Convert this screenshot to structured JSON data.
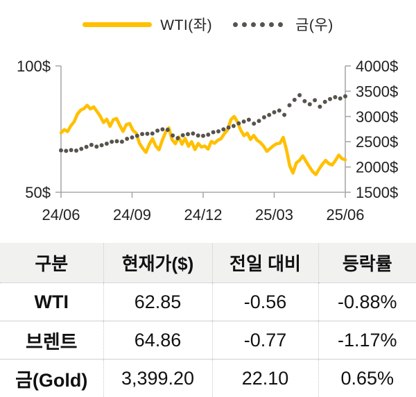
{
  "legend": {
    "wti_label": "WTI(좌)",
    "gold_label": "금(우)"
  },
  "chart_data": {
    "type": "line",
    "x_tick_labels": [
      "24/06",
      "24/09",
      "24/12",
      "25/03",
      "25/06"
    ],
    "left_axis": {
      "lim": [
        50,
        100
      ],
      "ticks": [
        {
          "label": "100$",
          "value": 100
        },
        {
          "label": "50$",
          "value": 50
        }
      ]
    },
    "right_axis": {
      "lim": [
        1500,
        4000
      ],
      "ticks": [
        {
          "label": "4000$",
          "value": 4000
        },
        {
          "label": "3500$",
          "value": 3500
        },
        {
          "label": "3000$",
          "value": 3000
        },
        {
          "label": "2500$",
          "value": 2500
        },
        {
          "label": "2000$",
          "value": 2000
        },
        {
          "label": "1500$",
          "value": 1500
        }
      ]
    },
    "axis_color": "#A9A9A9",
    "label_color": "#1F1F1F",
    "legend_position": "top",
    "grid": false,
    "series": [
      {
        "name": "WTI(좌)",
        "axis": "left",
        "line_style": "solid",
        "color": "#FFC000",
        "values": [
          73.5,
          74.8,
          74.0,
          76.3,
          77.9,
          80.9,
          82.5,
          83.1,
          84.4,
          83.0,
          83.8,
          82.0,
          80.1,
          77.6,
          78.9,
          76.1,
          78.7,
          79.2,
          76.4,
          74.1,
          76.8,
          77.2,
          74.5,
          73.4,
          69.4,
          67.4,
          65.8,
          68.9,
          71.2,
          68.3,
          66.8,
          70.6,
          73.7,
          75.5,
          70.8,
          69.2,
          71.9,
          69.0,
          71.3,
          68.2,
          70.0,
          66.9,
          69.3,
          67.9,
          68.3,
          67.1,
          70.1,
          69.4,
          70.6,
          71.2,
          73.2,
          74.7,
          78.8,
          80.0,
          77.8,
          74.6,
          72.4,
          73.4,
          70.9,
          72.5,
          70.6,
          69.7,
          68.3,
          66.2,
          67.3,
          68.4,
          69.2,
          69.4,
          71.7,
          66.8,
          60.4,
          57.6,
          61.6,
          62.6,
          64.4,
          62.2,
          60.1,
          58.2,
          57.0,
          59.2,
          61.1,
          62.6,
          61.3,
          60.8,
          62.6,
          64.7,
          63.3,
          62.85
        ]
      },
      {
        "name": "금(우)",
        "axis": "right",
        "line_style": "dotted",
        "color": "#57534D",
        "values": [
          2330,
          2318,
          2335,
          2324,
          2358,
          2398,
          2438,
          2402,
          2430,
          2462,
          2498,
          2510,
          2502,
          2558,
          2585,
          2618,
          2652,
          2656,
          2662,
          2718,
          2744,
          2736,
          2622,
          2572,
          2628,
          2650,
          2662,
          2622,
          2616,
          2640,
          2688,
          2706,
          2744,
          2780,
          2812,
          2864,
          2900,
          2936,
          2858,
          2912,
          2984,
          3030,
          3084,
          3118,
          3032,
          3222,
          3328,
          3422,
          3302,
          3242,
          3322,
          3192,
          3290,
          3344,
          3382,
          3356,
          3399
        ]
      }
    ]
  },
  "table": {
    "headers": [
      "구분",
      "현재가($)",
      "전일 대비",
      "등락률"
    ],
    "rows": [
      {
        "name": "WTI",
        "price": "62.85",
        "change": "-0.56",
        "pct": "-0.88%"
      },
      {
        "name": "브렌트",
        "price": "64.86",
        "change": "-0.77",
        "pct": "-1.17%"
      },
      {
        "name": "금(Gold)",
        "price": "3,399.20",
        "change": "22.10",
        "pct": "0.65%"
      }
    ]
  }
}
